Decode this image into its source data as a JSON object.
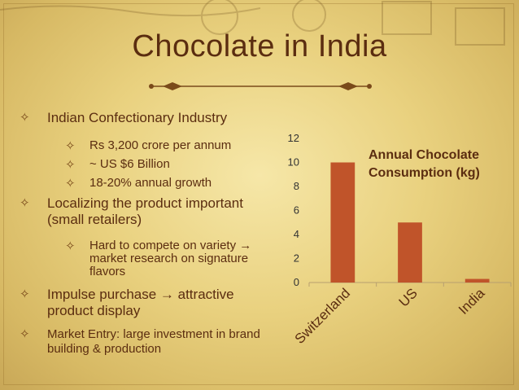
{
  "slide": {
    "title": "Chocolate in India"
  },
  "bullets": [
    {
      "level": 1,
      "text": "Indian Confectionary Industry"
    },
    {
      "level": 2,
      "text": "Rs 3,200 crore per annum"
    },
    {
      "level": 2,
      "text": "~ US $6 Billion"
    },
    {
      "level": 2,
      "text": "18-20% annual growth"
    },
    {
      "level": 1,
      "text": "Localizing the product important (small retailers)"
    },
    {
      "level": 2,
      "text": "Hard to compete on variety → market research on signature flavors"
    },
    {
      "level": 1,
      "text": "Impulse purchase → attractive product display"
    },
    {
      "level": 1,
      "text": "Market Entry: large investment in brand building & production"
    }
  ],
  "bullet_icon": "four-point-star-icon",
  "colors": {
    "title": "#5b2d10",
    "bar": "#c0542a",
    "background": "#ecd584"
  },
  "chart_data": {
    "type": "bar",
    "title": "Annual Chocolate Consumption (kg)",
    "categories": [
      "Switzerland",
      "US",
      "India"
    ],
    "values": [
      10,
      5,
      0.3
    ],
    "ylim": [
      0,
      12
    ],
    "yticks": [
      0,
      2,
      4,
      6,
      8,
      10,
      12
    ],
    "grid": false,
    "xlabel": "",
    "ylabel": ""
  }
}
